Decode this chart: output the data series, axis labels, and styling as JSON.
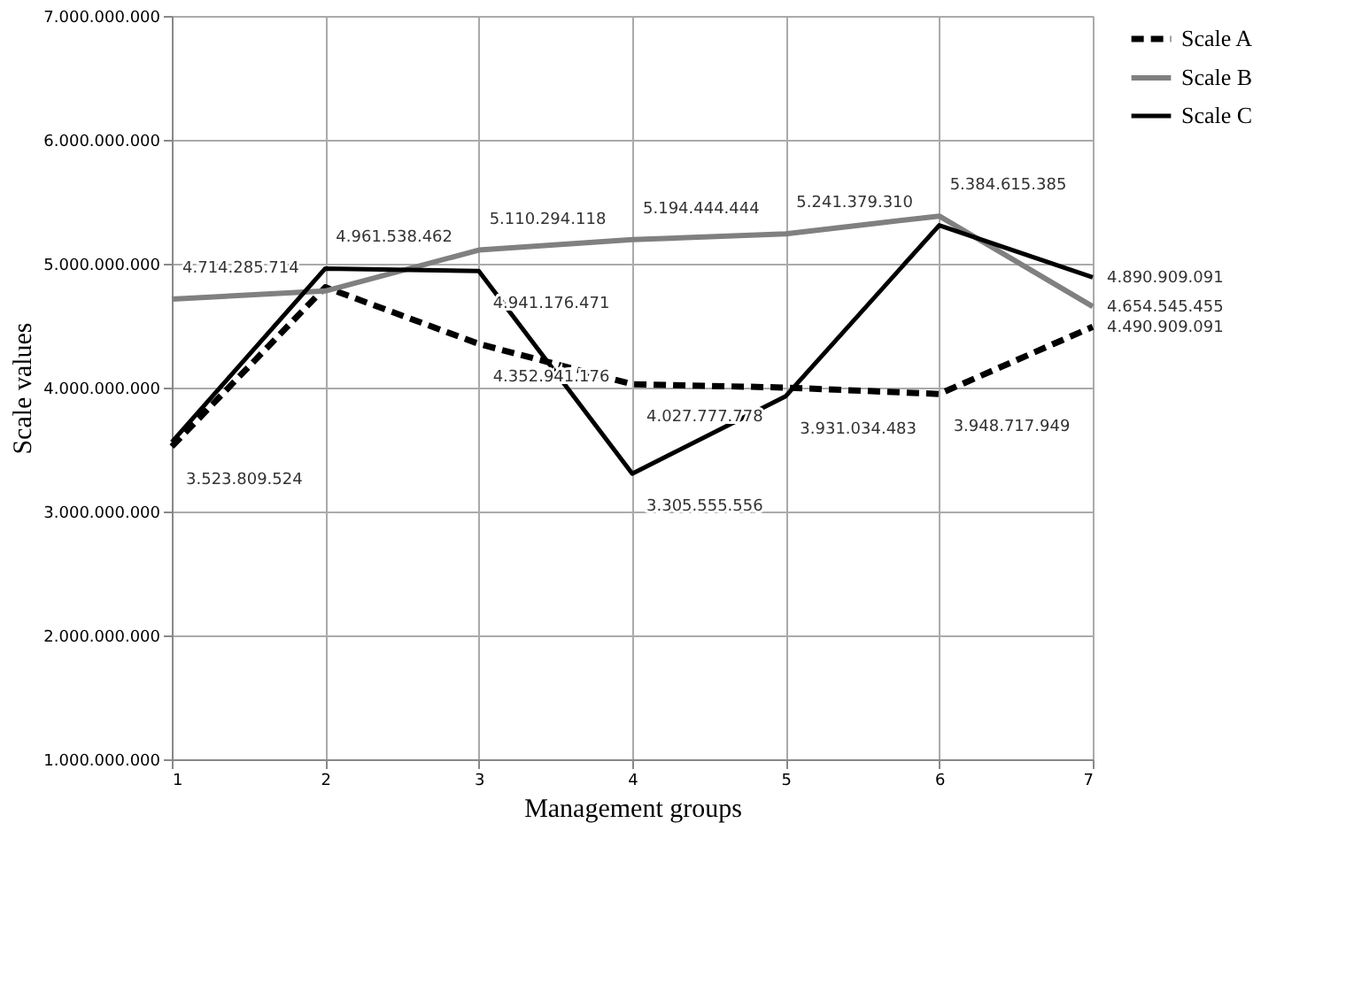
{
  "chart_data": {
    "type": "line",
    "xlabel": "Management groups",
    "ylabel": "Scale values",
    "x": [
      1,
      2,
      3,
      4,
      5,
      6,
      7
    ],
    "xlim": [
      1,
      7
    ],
    "xticks": [
      1,
      2,
      3,
      4,
      5,
      6,
      7
    ],
    "ylim": [
      1000000000,
      7000000000
    ],
    "yticks": [
      {
        "value": 1000000000,
        "label": "1.000.000.000"
      },
      {
        "value": 2000000000,
        "label": "2.000.000.000"
      },
      {
        "value": 3000000000,
        "label": "3.000.000.000"
      },
      {
        "value": 4000000000,
        "label": "4.000.000.000"
      },
      {
        "value": 5000000000,
        "label": "5.000.000.000"
      },
      {
        "value": 6000000000,
        "label": "6.000.000.000"
      },
      {
        "value": 7000000000,
        "label": "7.000.000.000"
      }
    ],
    "grid": true,
    "legend": "top right",
    "marker": "none",
    "series": [
      {
        "name": "Scale A",
        "color": "#000000",
        "line_style": "dashed",
        "values": [
          3523809524,
          4810000000,
          4352941176,
          4027777778,
          4000000000,
          3948717949,
          4490909091
        ],
        "value_labels": [
          "3.523.809.524",
          null,
          "4.352.941.176",
          "4.027.777.778",
          null,
          "3.948.717.949",
          "4.490.909.091"
        ]
      },
      {
        "name": "Scale B",
        "color": "#808080",
        "line_style": "solid",
        "values": [
          4714285714,
          4780000000,
          5110294118,
          5194444444,
          5241379310,
          5384615385,
          4654545455
        ],
        "value_labels": [
          "4.714.285.714",
          null,
          "5.110.294.118",
          "5.194.444.444",
          "5.241.379.310",
          "5.384.615.385",
          "4.654.545.455"
        ]
      },
      {
        "name": "Scale C",
        "color": "#000000",
        "line_style": "solid",
        "values": [
          3560000000,
          4961538462,
          4941176471,
          3305555556,
          3931034483,
          5310000000,
          4890909091
        ],
        "value_labels": [
          null,
          "4.961.538.462",
          "4.941.176.471",
          "3.305.555.556",
          "3.931.034.483",
          null,
          "4.890.909.091"
        ]
      }
    ]
  }
}
